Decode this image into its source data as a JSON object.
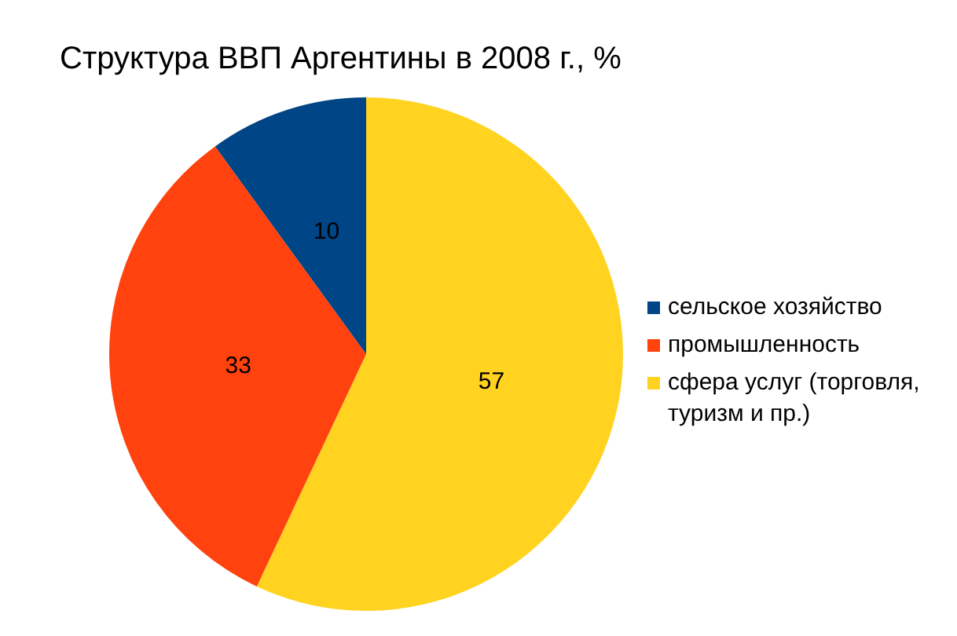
{
  "chart_data": {
    "type": "pie",
    "title": "Структура ВВП Аргентины в 2008 г., %",
    "categories": [
      "сфера услуг (торговля, туризм и пр.)",
      "промышленность",
      "сельское хозяйство"
    ],
    "values": [
      57,
      33,
      10
    ],
    "colors": [
      "#ffd320",
      "#ff420e",
      "#004586"
    ],
    "data_labels": true,
    "legend": "right"
  }
}
